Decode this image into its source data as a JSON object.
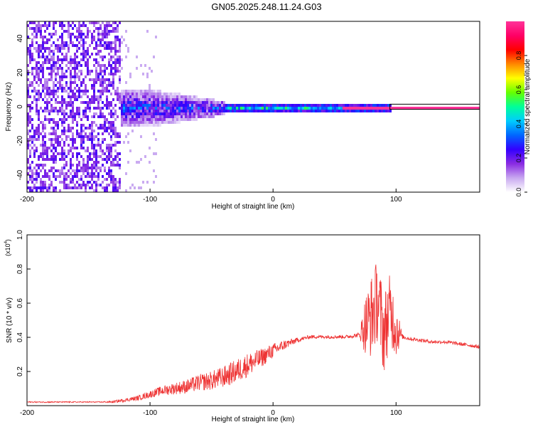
{
  "title": "GN05.2025.248.11.24.G03",
  "chart_data": [
    {
      "type": "heatmap",
      "name": "spectrogram",
      "xlabel": "Height of straight line (km)",
      "ylabel": "Frequency (Hz)",
      "xlim": [
        -200,
        168
      ],
      "ylim": [
        -50,
        50
      ],
      "xticks": [
        -200,
        -100,
        0,
        100
      ],
      "yticks": [
        -40,
        -20,
        0,
        20,
        40
      ],
      "colorbar": {
        "label": "Normalized spectral amplitude",
        "range": [
          0,
          1
        ],
        "ticks": [
          0.0,
          0.2,
          0.4,
          0.6,
          0.8
        ],
        "tick_labels": [
          "0.0",
          "0.2",
          "0.4",
          "0.6",
          "0.8"
        ],
        "stops": [
          "#ffffff",
          "#c8a8f0",
          "#8a2be2",
          "#3300ff",
          "#0066ff",
          "#00ccff",
          "#00ff99",
          "#66ff00",
          "#ffff00",
          "#ff8800",
          "#ff0000",
          "#ff0066",
          "#ff3399"
        ]
      },
      "features": [
        {
          "x_range": [
            -200,
            -125
          ],
          "freq_range": [
            -50,
            50
          ],
          "amplitude": 0.15,
          "desc": "broadband noise"
        },
        {
          "x_range": [
            -125,
            -40
          ],
          "freq_range": [
            -10,
            10
          ],
          "amplitude": 0.3,
          "desc": "widening signal"
        },
        {
          "x_range": [
            -40,
            95
          ],
          "freq_range": [
            -3,
            3
          ],
          "amplitude": 0.5,
          "desc": "main signal"
        },
        {
          "x_range": [
            55,
            95
          ],
          "freq_range": [
            -1,
            1
          ],
          "amplitude": 1.0,
          "desc": "peak"
        },
        {
          "x_range": [
            95,
            168
          ],
          "freq_range": [
            -1,
            1
          ],
          "amplitude": 1.0,
          "desc": "steady tone"
        }
      ]
    },
    {
      "type": "line",
      "name": "snr",
      "xlabel": "Height of straight line (km)",
      "ylabel": "SNR (10 * v/v)",
      "ymultiplier": "(x10",
      "ymultiplier_exp": "4",
      "ymultiplier_close": ")",
      "xlim": [
        -200,
        168
      ],
      "ylim": [
        0,
        1.0
      ],
      "xticks": [
        -200,
        -100,
        0,
        100
      ],
      "yticks": [
        0.2,
        0.4,
        0.6,
        0.8,
        1.0
      ],
      "ytick_labels": [
        "0.2",
        "0.4",
        "0.6",
        "0.8",
        "1.0"
      ],
      "color": "#ee3333",
      "x": [
        -200,
        -180,
        -160,
        -140,
        -130,
        -120,
        -110,
        -100,
        -90,
        -80,
        -70,
        -60,
        -50,
        -40,
        -30,
        -20,
        -10,
        0,
        10,
        20,
        30,
        40,
        50,
        60,
        70,
        75,
        80,
        85,
        90,
        95,
        100,
        105,
        110,
        120,
        130,
        140,
        150,
        160,
        168
      ],
      "y": [
        0.02,
        0.02,
        0.02,
        0.02,
        0.02,
        0.03,
        0.04,
        0.06,
        0.08,
        0.09,
        0.1,
        0.12,
        0.13,
        0.15,
        0.18,
        0.22,
        0.26,
        0.31,
        0.35,
        0.38,
        0.4,
        0.4,
        0.4,
        0.4,
        0.41,
        0.42,
        0.45,
        0.55,
        0.35,
        0.5,
        0.4,
        0.4,
        0.39,
        0.38,
        0.37,
        0.37,
        0.36,
        0.35,
        0.34
      ],
      "noise": [
        0.005,
        0.005,
        0.005,
        0.005,
        0.01,
        0.015,
        0.02,
        0.03,
        0.04,
        0.05,
        0.06,
        0.07,
        0.08,
        0.09,
        0.1,
        0.1,
        0.08,
        0.06,
        0.04,
        0.02,
        0.015,
        0.015,
        0.015,
        0.015,
        0.02,
        0.25,
        0.35,
        0.35,
        0.35,
        0.3,
        0.25,
        0.02,
        0.015,
        0.015,
        0.015,
        0.015,
        0.015,
        0.015,
        0.015
      ]
    }
  ]
}
